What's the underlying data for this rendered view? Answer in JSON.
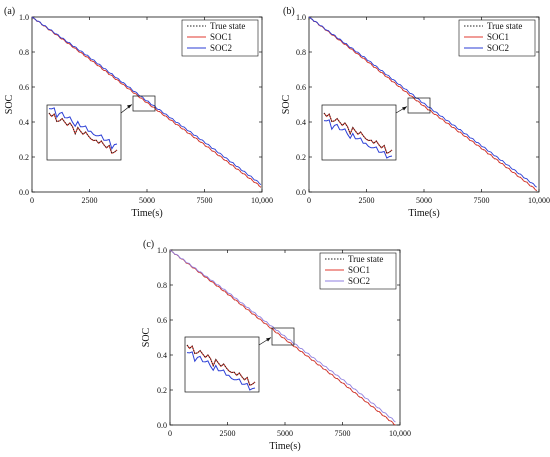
{
  "figure": {
    "panel_letters": [
      "(a)",
      "(b)",
      "(c)"
    ]
  },
  "colors": {
    "true_state": "#222222",
    "soc1": "#e03a2f",
    "soc2": "#2b3ed6",
    "soc2_panel_c": "#8f7fe0",
    "axis": "#111111"
  },
  "chart_data": [
    {
      "panel": "(a)",
      "type": "line",
      "xlabel": "Time(s)",
      "ylabel": "SOC",
      "xlim": [
        0,
        10000
      ],
      "ylim": [
        0,
        1.0
      ],
      "x_ticks": [
        "0",
        "2500",
        "5000",
        "7500",
        "10,000"
      ],
      "y_ticks": [
        "0.0",
        "0.2",
        "0.4",
        "0.6",
        "0.8",
        "1.0"
      ],
      "legend_position": "top-right",
      "inset": "zoom of region near Time 5000 s, SOC 0.5",
      "series": [
        {
          "name": "True state",
          "style": "dotted",
          "x": [
            0,
            2500,
            5000,
            7500,
            9950
          ],
          "values": [
            1.0,
            0.76,
            0.51,
            0.27,
            0.03
          ]
        },
        {
          "name": "SOC1",
          "style": "solid",
          "x": [
            0,
            2500,
            5000,
            7500,
            9950
          ],
          "values": [
            1.0,
            0.76,
            0.51,
            0.27,
            0.03
          ]
        },
        {
          "name": "SOC2",
          "style": "solid",
          "x": [
            0,
            2500,
            5000,
            7500,
            9950
          ],
          "values": [
            1.0,
            0.77,
            0.52,
            0.285,
            0.045
          ]
        }
      ]
    },
    {
      "panel": "(b)",
      "type": "line",
      "xlabel": "Time(s)",
      "ylabel": "SOC",
      "xlim": [
        0,
        10000
      ],
      "ylim": [
        0,
        1.0
      ],
      "x_ticks": [
        "0",
        "2500",
        "5000",
        "7500",
        "10,000"
      ],
      "y_ticks": [
        "0.0",
        "0.2",
        "0.4",
        "0.6",
        "0.8",
        "1.0"
      ],
      "legend_position": "top-right",
      "inset": "zoom of region near Time 5000 s, SOC 0.5",
      "series": [
        {
          "name": "True state",
          "style": "dotted",
          "x": [
            0,
            2500,
            5000,
            7500,
            9900
          ],
          "values": [
            1.0,
            0.75,
            0.49,
            0.25,
            0.01
          ]
        },
        {
          "name": "SOC1",
          "style": "solid",
          "x": [
            0,
            2500,
            5000,
            7500,
            9900
          ],
          "values": [
            1.0,
            0.75,
            0.49,
            0.25,
            0.01
          ]
        },
        {
          "name": "SOC2",
          "style": "solid",
          "x": [
            0,
            2500,
            5000,
            7500,
            9900
          ],
          "values": [
            1.0,
            0.76,
            0.505,
            0.265,
            0.03
          ]
        }
      ]
    },
    {
      "panel": "(c)",
      "type": "line",
      "xlabel": "Time(s)",
      "ylabel": "SOC",
      "xlim": [
        0,
        10000
      ],
      "ylim": [
        0,
        1.0
      ],
      "x_ticks": [
        "0",
        "2500",
        "5000",
        "7500",
        "10,000"
      ],
      "y_ticks": [
        "0.0",
        "0.2",
        "0.4",
        "0.6",
        "0.8",
        "1.0"
      ],
      "legend_position": "top-right",
      "inset": "zoom of region near Time 5000 s, SOC 0.5",
      "series": [
        {
          "name": "True state",
          "style": "dotted",
          "x": [
            0,
            2500,
            5000,
            7500,
            9800
          ],
          "values": [
            1.0,
            0.75,
            0.49,
            0.24,
            0.0
          ]
        },
        {
          "name": "SOC1",
          "style": "solid",
          "x": [
            0,
            2500,
            5000,
            7500,
            9800
          ],
          "values": [
            1.0,
            0.75,
            0.49,
            0.24,
            0.0
          ]
        },
        {
          "name": "SOC2",
          "style": "solid",
          "x": [
            0,
            2500,
            5000,
            7500,
            9800
          ],
          "values": [
            1.0,
            0.76,
            0.505,
            0.26,
            0.02
          ]
        }
      ]
    }
  ]
}
